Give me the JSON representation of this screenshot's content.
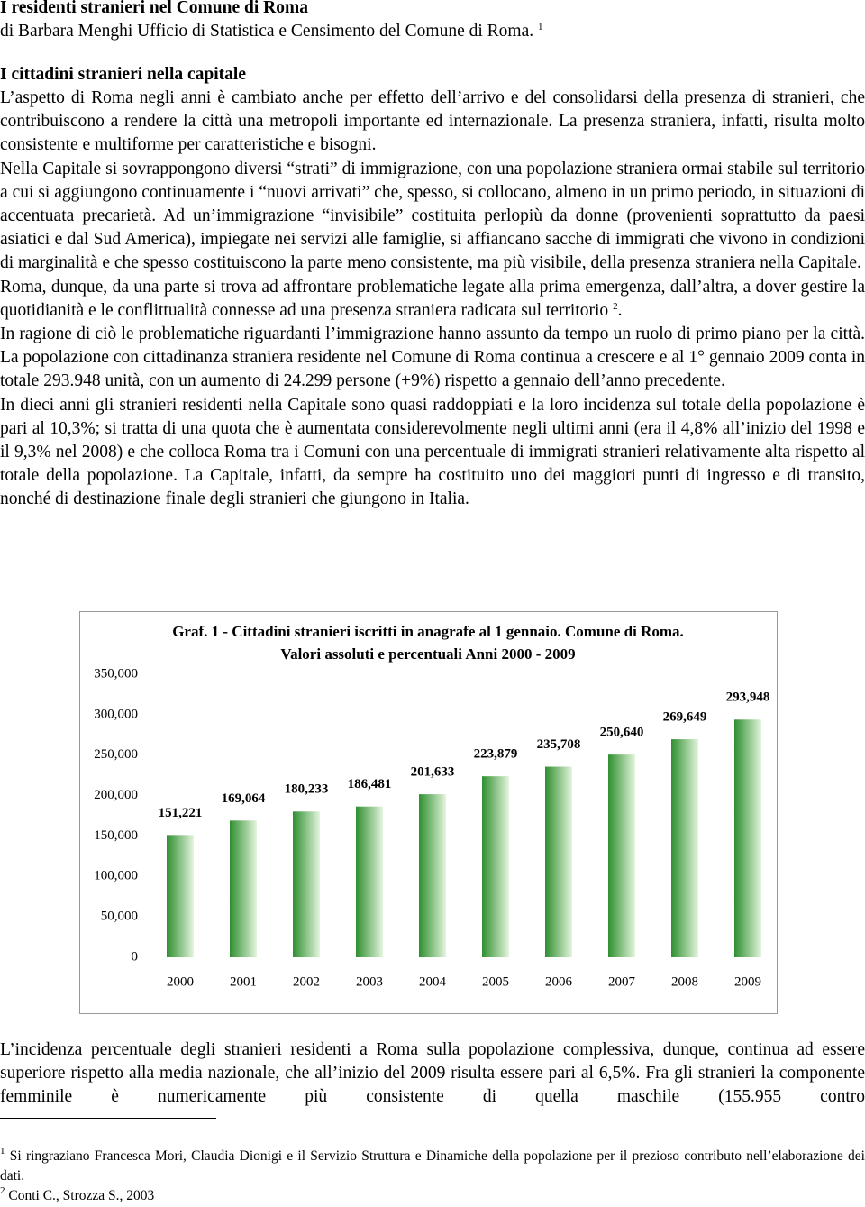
{
  "header": {
    "title": "I residenti stranieri nel Comune di Roma",
    "byline": "di Barbara Menghi Ufficio di Statistica e Censimento del Comune di Roma.",
    "byline_note": "1"
  },
  "section_title": "I cittadini stranieri nella capitale",
  "paragraphs": [
    {
      "text": "L’aspetto di Roma negli anni è cambiato anche per effetto dell’arrivo e del consolidarsi della presenza di stranieri, che contribuiscono a rendere la città una metropoli importante ed internazionale. La presenza straniera, infatti, risulta molto consistente e multiforme per caratteristiche e bisogni."
    },
    {
      "text": "Nella Capitale si sovrappongono diversi “strati” di immigrazione, con una popolazione straniera ormai stabile sul territorio a cui si aggiungono continuamente i “nuovi arrivati” che, spesso, si collocano, almeno in un primo periodo, in situazioni di accentuata precarietà. Ad un’immigrazione “invisibile” costituita perlopiù da donne (provenienti soprattutto da paesi asiatici e dal Sud America), impiegate nei servizi alle famiglie, si affiancano sacche di immigrati che vivono in condizioni di marginalità e che spesso costituiscono la parte meno consistente, ma più visibile, della presenza straniera nella Capitale."
    },
    {
      "text": "Roma, dunque, da una parte si trova ad affrontare problematiche legate alla prima emergenza, dall’altra, a dover gestire la quotidianità e le conflittualità connesse ad una presenza straniera radicata sul territorio",
      "note": "2",
      "after": "."
    },
    {
      "text": "In ragione di ciò le problematiche riguardanti l’immigrazione hanno assunto da tempo un ruolo di primo piano per la città. La popolazione con cittadinanza straniera residente nel Comune di Roma continua a crescere e al 1° gennaio 2009 conta in totale 293.948 unità, con un aumento di 24.299 persone (+9%) rispetto a gennaio dell’anno precedente."
    },
    {
      "text": "In dieci anni gli stranieri residenti nella Capitale sono quasi raddoppiati e la loro incidenza sul totale della popolazione è pari al 10,3%; si tratta di una quota che è aumentata considerevolmente negli ultimi anni (era il 4,8% all’inizio del 1998 e il 9,3% nel 2008) e che colloca Roma tra i Comuni con una percentuale di immigrati stranieri relativamente alta rispetto al totale della popolazione. La Capitale, infatti, da sempre ha costituito uno dei maggiori punti di ingresso e di transito, nonché di destinazione finale degli stranieri che giungono in Italia."
    },
    {
      "text": "L’incidenza percentuale degli stranieri residenti a Roma sulla popolazione complessiva, dunque, continua ad essere superiore rispetto alla media nazionale, che all’inizio del 2009 risulta essere pari al 6,5%. Fra gli stranieri la componente femminile è numericamente più consistente di quella maschile (155.955 contro"
    }
  ],
  "chart_data": {
    "type": "bar",
    "title": "Graf. 1 - Cittadini stranieri iscritti in anagrafe al 1 gennaio. Comune di Roma.",
    "subtitle": "Valori assoluti e percentuali Anni 2000 - 2009",
    "categories": [
      "2000",
      "2001",
      "2002",
      "2003",
      "2004",
      "2005",
      "2006",
      "2007",
      "2008",
      "2009"
    ],
    "values": [
      151221,
      169064,
      180233,
      186481,
      201633,
      223879,
      235708,
      250640,
      269649,
      293948
    ],
    "value_labels": [
      "151,221",
      "169,064",
      "180,233",
      "186,481",
      "201,633",
      "223,879",
      "235,708",
      "250,640",
      "269,649",
      "293,948"
    ],
    "color": "#2f8f2f",
    "ylim": [
      0,
      350000
    ],
    "yticks": [
      0,
      {
        "value": 50000,
        "label": "50,000"
      },
      {
        "value": 100000,
        "label": "100,000"
      },
      {
        "value": 150000,
        "label": "150,000"
      },
      {
        "value": 200000,
        "label": "200,000"
      },
      {
        "value": 250000,
        "label": "250,000"
      },
      {
        "value": 300000,
        "label": "300,000"
      },
      {
        "value": 350000,
        "label": "350,000"
      }
    ],
    "grid": false
  },
  "footnotes": [
    {
      "marker": "1",
      "text": "Si ringraziano Francesca Mori, Claudia Dionigi e il Servizio Struttura e Dinamiche della popolazione per il prezioso contributo nell’elaborazione dei dati."
    },
    {
      "marker": "2",
      "text": "Conti C., Strozza S., 2003"
    }
  ]
}
